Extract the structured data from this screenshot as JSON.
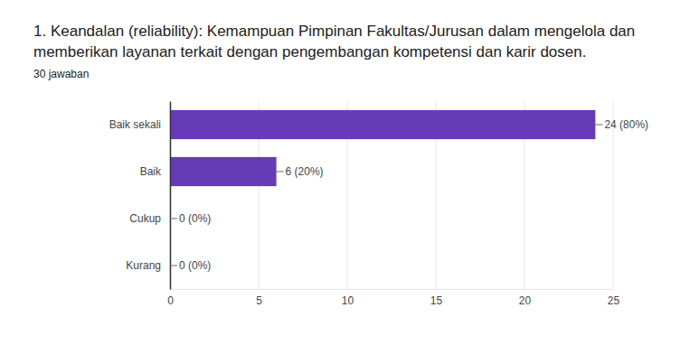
{
  "chart_data": {
    "type": "bar",
    "orientation": "horizontal",
    "title": "1. Keandalan (reliability): Kemampuan Pimpinan Fakultas/Jurusan dalam mengelola dan memberikan layanan terkait dengan pengembangan kompetensi dan karir dosen.",
    "subtitle": "30 jawaban",
    "categories": [
      "Baik sekali",
      "Baik",
      "Cukup",
      "Kurang"
    ],
    "values": [
      24,
      6,
      0,
      0
    ],
    "value_labels": [
      "24 (80%)",
      "6 (20%)",
      "0 (0%)",
      "0 (0%)"
    ],
    "data_labels": true,
    "color": "#673ab7",
    "xlim": [
      0,
      25
    ],
    "xticks": [
      0,
      5,
      10,
      15,
      20,
      25
    ],
    "grid": true
  }
}
